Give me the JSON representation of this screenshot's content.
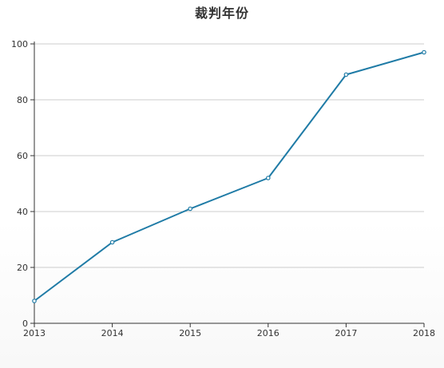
{
  "chart_data": {
    "type": "line",
    "title": "裁判年份",
    "xlabel": "",
    "ylabel": "",
    "x": [
      "2013",
      "2014",
      "2015",
      "2016",
      "2017",
      "2018"
    ],
    "series": [
      {
        "values": [
          8,
          29,
          41,
          52,
          89,
          97
        ],
        "color": "#1f7ba6"
      }
    ],
    "ylim": [
      0,
      100
    ],
    "yticks": [
      0,
      20,
      40,
      60,
      80,
      100
    ],
    "grid": true,
    "legend": "none"
  }
}
